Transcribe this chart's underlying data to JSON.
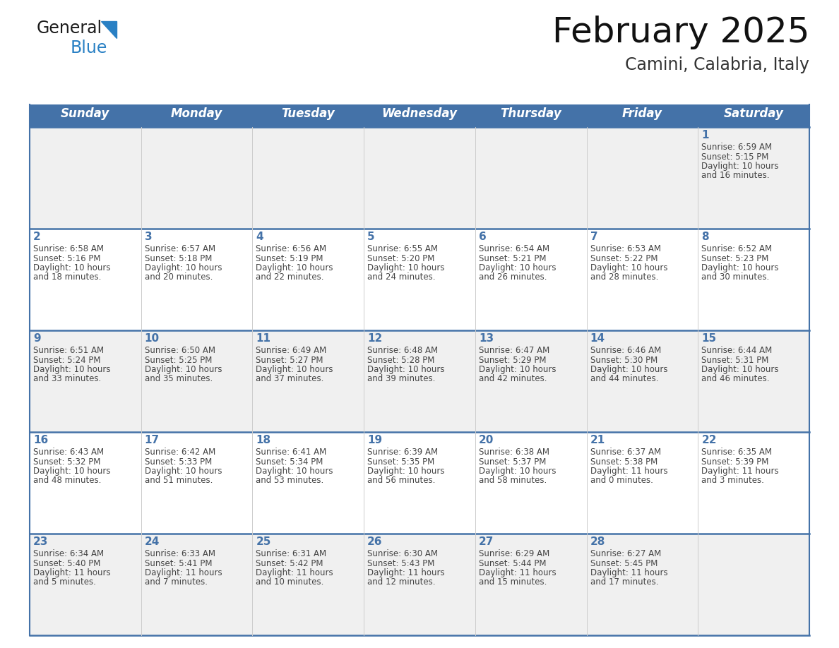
{
  "title": "February 2025",
  "subtitle": "Camini, Calabria, Italy",
  "days_of_week": [
    "Sunday",
    "Monday",
    "Tuesday",
    "Wednesday",
    "Thursday",
    "Friday",
    "Saturday"
  ],
  "header_bg": "#4472a8",
  "header_text": "#ffffff",
  "cell_bg_odd": "#f0f0f0",
  "cell_bg_even": "#ffffff",
  "divider_color": "#4472a8",
  "text_color": "#444444",
  "day_num_color": "#4472a8",
  "calendar_data": [
    [
      null,
      null,
      null,
      null,
      null,
      null,
      {
        "day": "1",
        "sunrise": "6:59 AM",
        "sunset": "5:15 PM",
        "daylight": "10 hours",
        "daylight2": "and 16 minutes."
      }
    ],
    [
      {
        "day": "2",
        "sunrise": "6:58 AM",
        "sunset": "5:16 PM",
        "daylight": "10 hours",
        "daylight2": "and 18 minutes."
      },
      {
        "day": "3",
        "sunrise": "6:57 AM",
        "sunset": "5:18 PM",
        "daylight": "10 hours",
        "daylight2": "and 20 minutes."
      },
      {
        "day": "4",
        "sunrise": "6:56 AM",
        "sunset": "5:19 PM",
        "daylight": "10 hours",
        "daylight2": "and 22 minutes."
      },
      {
        "day": "5",
        "sunrise": "6:55 AM",
        "sunset": "5:20 PM",
        "daylight": "10 hours",
        "daylight2": "and 24 minutes."
      },
      {
        "day": "6",
        "sunrise": "6:54 AM",
        "sunset": "5:21 PM",
        "daylight": "10 hours",
        "daylight2": "and 26 minutes."
      },
      {
        "day": "7",
        "sunrise": "6:53 AM",
        "sunset": "5:22 PM",
        "daylight": "10 hours",
        "daylight2": "and 28 minutes."
      },
      {
        "day": "8",
        "sunrise": "6:52 AM",
        "sunset": "5:23 PM",
        "daylight": "10 hours",
        "daylight2": "and 30 minutes."
      }
    ],
    [
      {
        "day": "9",
        "sunrise": "6:51 AM",
        "sunset": "5:24 PM",
        "daylight": "10 hours",
        "daylight2": "and 33 minutes."
      },
      {
        "day": "10",
        "sunrise": "6:50 AM",
        "sunset": "5:25 PM",
        "daylight": "10 hours",
        "daylight2": "and 35 minutes."
      },
      {
        "day": "11",
        "sunrise": "6:49 AM",
        "sunset": "5:27 PM",
        "daylight": "10 hours",
        "daylight2": "and 37 minutes."
      },
      {
        "day": "12",
        "sunrise": "6:48 AM",
        "sunset": "5:28 PM",
        "daylight": "10 hours",
        "daylight2": "and 39 minutes."
      },
      {
        "day": "13",
        "sunrise": "6:47 AM",
        "sunset": "5:29 PM",
        "daylight": "10 hours",
        "daylight2": "and 42 minutes."
      },
      {
        "day": "14",
        "sunrise": "6:46 AM",
        "sunset": "5:30 PM",
        "daylight": "10 hours",
        "daylight2": "and 44 minutes."
      },
      {
        "day": "15",
        "sunrise": "6:44 AM",
        "sunset": "5:31 PM",
        "daylight": "10 hours",
        "daylight2": "and 46 minutes."
      }
    ],
    [
      {
        "day": "16",
        "sunrise": "6:43 AM",
        "sunset": "5:32 PM",
        "daylight": "10 hours",
        "daylight2": "and 48 minutes."
      },
      {
        "day": "17",
        "sunrise": "6:42 AM",
        "sunset": "5:33 PM",
        "daylight": "10 hours",
        "daylight2": "and 51 minutes."
      },
      {
        "day": "18",
        "sunrise": "6:41 AM",
        "sunset": "5:34 PM",
        "daylight": "10 hours",
        "daylight2": "and 53 minutes."
      },
      {
        "day": "19",
        "sunrise": "6:39 AM",
        "sunset": "5:35 PM",
        "daylight": "10 hours",
        "daylight2": "and 56 minutes."
      },
      {
        "day": "20",
        "sunrise": "6:38 AM",
        "sunset": "5:37 PM",
        "daylight": "10 hours",
        "daylight2": "and 58 minutes."
      },
      {
        "day": "21",
        "sunrise": "6:37 AM",
        "sunset": "5:38 PM",
        "daylight": "11 hours",
        "daylight2": "and 0 minutes."
      },
      {
        "day": "22",
        "sunrise": "6:35 AM",
        "sunset": "5:39 PM",
        "daylight": "11 hours",
        "daylight2": "and 3 minutes."
      }
    ],
    [
      {
        "day": "23",
        "sunrise": "6:34 AM",
        "sunset": "5:40 PM",
        "daylight": "11 hours",
        "daylight2": "and 5 minutes."
      },
      {
        "day": "24",
        "sunrise": "6:33 AM",
        "sunset": "5:41 PM",
        "daylight": "11 hours",
        "daylight2": "and 7 minutes."
      },
      {
        "day": "25",
        "sunrise": "6:31 AM",
        "sunset": "5:42 PM",
        "daylight": "11 hours",
        "daylight2": "and 10 minutes."
      },
      {
        "day": "26",
        "sunrise": "6:30 AM",
        "sunset": "5:43 PM",
        "daylight": "11 hours",
        "daylight2": "and 12 minutes."
      },
      {
        "day": "27",
        "sunrise": "6:29 AM",
        "sunset": "5:44 PM",
        "daylight": "11 hours",
        "daylight2": "and 15 minutes."
      },
      {
        "day": "28",
        "sunrise": "6:27 AM",
        "sunset": "5:45 PM",
        "daylight": "11 hours",
        "daylight2": "and 17 minutes."
      },
      null
    ]
  ],
  "logo_color_general": "#1a1a1a",
  "logo_color_blue": "#2980c4",
  "title_fontsize": 36,
  "subtitle_fontsize": 17,
  "header_fontsize": 12,
  "day_num_fontsize": 11,
  "cell_text_fontsize": 8.5
}
